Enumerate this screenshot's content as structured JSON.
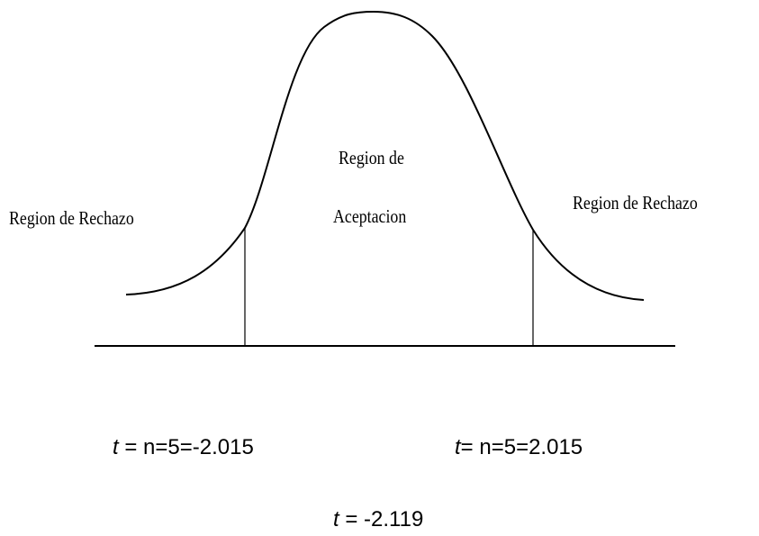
{
  "regions": {
    "left": "Region de Rechazo",
    "center": [
      "Region de",
      "Aceptacion"
    ],
    "right": "Region de Rechazo"
  },
  "critical_values": [
    {
      "variable": "t",
      "text": " = n=5=-2.015"
    },
    {
      "variable": "t",
      "text": "= n=5=2.015"
    }
  ],
  "statistic": {
    "variable": "t",
    "text": " = -2.119"
  }
}
